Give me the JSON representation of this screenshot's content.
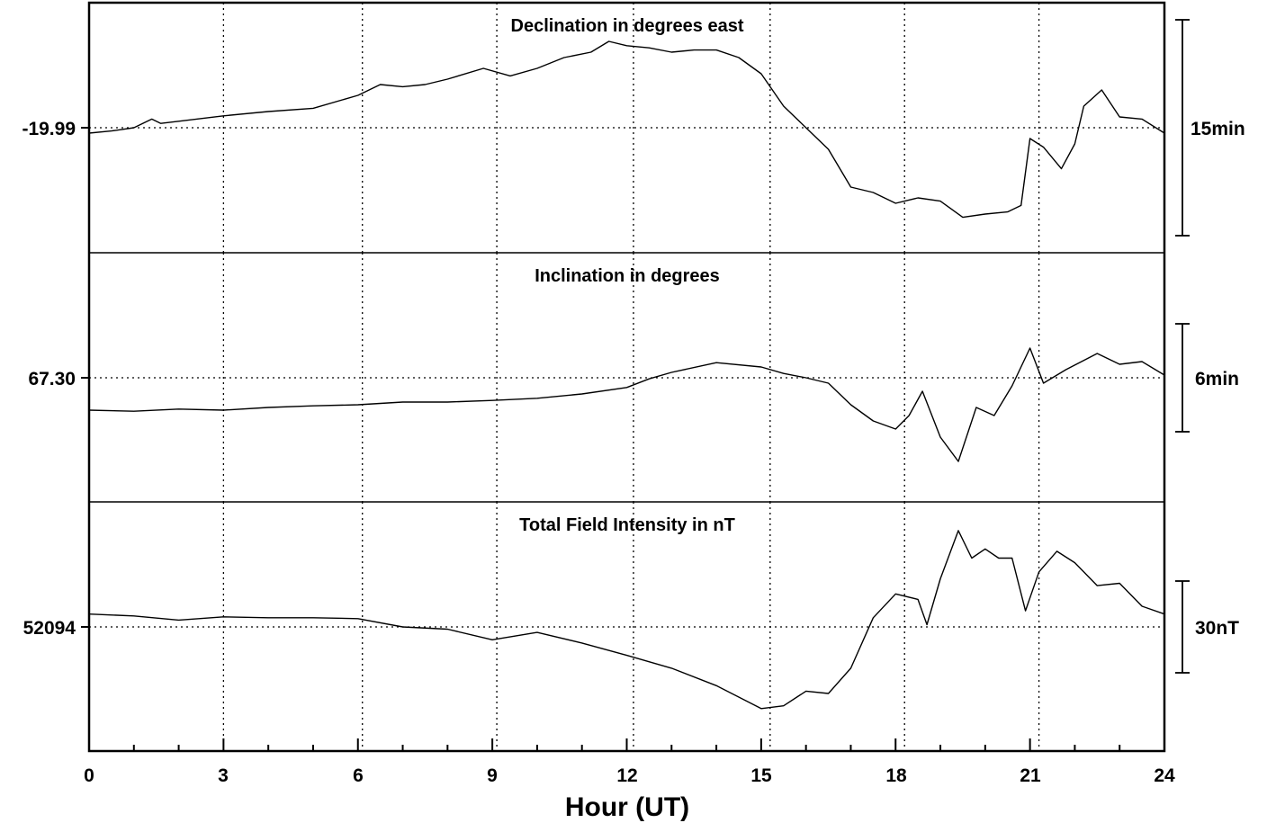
{
  "colors": {
    "trace": "#000000",
    "background": "#ffffff",
    "grid": "#000000"
  },
  "chart_data": {
    "type": "line",
    "x_axis": {
      "label": "Hour (UT)",
      "range": [
        0,
        24
      ],
      "ticks": [
        "0",
        "3",
        "6",
        "9",
        "12",
        "15",
        "18",
        "21",
        "24"
      ],
      "tick_values": [
        0,
        3,
        6,
        9,
        12,
        15,
        18,
        21,
        24
      ],
      "minor_tick_step": 1
    },
    "grid": "dotted",
    "panels": [
      {
        "key": "declination",
        "title": "Declination in degrees east",
        "baseline_label": "-19.99",
        "scale_bar_label": "15min",
        "vertical_units": "scale bar",
        "baseline_offset": 0,
        "ylim": [
          -1.15,
          1.15
        ],
        "vertical_grid_hours": [
          3,
          6.1,
          9.1,
          12.15,
          15.2,
          18.2,
          21.2
        ],
        "series": [
          {
            "values": [
              [
                0,
                -0.05
              ],
              [
                0.5,
                -0.03
              ],
              [
                1,
                0
              ],
              [
                1.4,
                0.08
              ],
              [
                1.6,
                0.04
              ],
              [
                2,
                0.06
              ],
              [
                3,
                0.11
              ],
              [
                4,
                0.15
              ],
              [
                5,
                0.18
              ],
              [
                6,
                0.3
              ],
              [
                6.5,
                0.4
              ],
              [
                7,
                0.38
              ],
              [
                7.5,
                0.4
              ],
              [
                8,
                0.45
              ],
              [
                8.8,
                0.55
              ],
              [
                9.4,
                0.48
              ],
              [
                10,
                0.55
              ],
              [
                10.6,
                0.65
              ],
              [
                11.2,
                0.7
              ],
              [
                11.6,
                0.8
              ],
              [
                12,
                0.76
              ],
              [
                12.5,
                0.74
              ],
              [
                13,
                0.7
              ],
              [
                13.5,
                0.72
              ],
              [
                14,
                0.72
              ],
              [
                14.5,
                0.65
              ],
              [
                15,
                0.5
              ],
              [
                15.5,
                0.2
              ],
              [
                16,
                0
              ],
              [
                16.5,
                -0.2
              ],
              [
                17,
                -0.55
              ],
              [
                17.5,
                -0.6
              ],
              [
                18,
                -0.7
              ],
              [
                18.5,
                -0.65
              ],
              [
                19,
                -0.68
              ],
              [
                19.5,
                -0.83
              ],
              [
                20,
                -0.8
              ],
              [
                20.5,
                -0.78
              ],
              [
                20.8,
                -0.72
              ],
              [
                21,
                -0.1
              ],
              [
                21.3,
                -0.18
              ],
              [
                21.7,
                -0.38
              ],
              [
                22,
                -0.15
              ],
              [
                22.2,
                0.2
              ],
              [
                22.6,
                0.35
              ],
              [
                23,
                0.1
              ],
              [
                23.5,
                0.08
              ],
              [
                24,
                -0.05
              ]
            ]
          }
        ]
      },
      {
        "key": "inclination",
        "title": "Inclination in degrees",
        "baseline_label": "67.30",
        "scale_bar_label": "6min",
        "vertical_units": "scale bar",
        "baseline_offset": 0,
        "ylim": [
          -1.15,
          1.15
        ],
        "vertical_grid_hours": [
          3,
          6.1,
          9.1,
          12.15,
          15.2,
          18.2,
          21.2
        ],
        "series": [
          {
            "values": [
              [
                0,
                -0.6
              ],
              [
                1,
                -0.62
              ],
              [
                2,
                -0.58
              ],
              [
                3,
                -0.6
              ],
              [
                4,
                -0.55
              ],
              [
                5,
                -0.52
              ],
              [
                6,
                -0.5
              ],
              [
                7,
                -0.45
              ],
              [
                8,
                -0.45
              ],
              [
                9,
                -0.42
              ],
              [
                10,
                -0.38
              ],
              [
                11,
                -0.3
              ],
              [
                12,
                -0.18
              ],
              [
                12.5,
                -0.02
              ],
              [
                13,
                0.1
              ],
              [
                14,
                0.28
              ],
              [
                15,
                0.2
              ],
              [
                15.5,
                0.08
              ],
              [
                16,
                0
              ],
              [
                16.5,
                -0.1
              ],
              [
                17,
                -0.5
              ],
              [
                17.5,
                -0.8
              ],
              [
                18,
                -0.95
              ],
              [
                18.3,
                -0.7
              ],
              [
                18.6,
                -0.25
              ],
              [
                19,
                -1.1
              ],
              [
                19.4,
                -1.55
              ],
              [
                19.8,
                -0.55
              ],
              [
                20.2,
                -0.7
              ],
              [
                20.6,
                -0.15
              ],
              [
                21,
                0.55
              ],
              [
                21.3,
                -0.1
              ],
              [
                21.8,
                0.15
              ],
              [
                22.5,
                0.45
              ],
              [
                23,
                0.25
              ],
              [
                23.5,
                0.3
              ],
              [
                24,
                0.05
              ]
            ]
          }
        ]
      },
      {
        "key": "total_field",
        "title": "Total Field Intensity in nT",
        "baseline_label": "52094",
        "scale_bar_label": "30nT",
        "vertical_units": "scale bar",
        "baseline_offset": 0,
        "ylim": [
          -1.35,
          2.15
        ],
        "vertical_grid_hours": [
          3,
          6.1,
          9.1,
          12.15,
          15.2,
          18.2,
          21.2
        ],
        "series": [
          {
            "values": [
              [
                0,
                0.28
              ],
              [
                1,
                0.24
              ],
              [
                2,
                0.15
              ],
              [
                3,
                0.22
              ],
              [
                4,
                0.2
              ],
              [
                5,
                0.2
              ],
              [
                6,
                0.18
              ],
              [
                7,
                0
              ],
              [
                8,
                -0.05
              ],
              [
                9,
                -0.28
              ],
              [
                10,
                -0.12
              ],
              [
                11,
                -0.35
              ],
              [
                12,
                -0.62
              ],
              [
                13,
                -0.9
              ],
              [
                14,
                -1.28
              ],
              [
                15,
                -1.78
              ],
              [
                15.5,
                -1.72
              ],
              [
                16,
                -1.4
              ],
              [
                16.5,
                -1.45
              ],
              [
                17,
                -0.9
              ],
              [
                17.5,
                0.2
              ],
              [
                18,
                0.72
              ],
              [
                18.5,
                0.6
              ],
              [
                18.7,
                0.05
              ],
              [
                19,
                1.05
              ],
              [
                19.4,
                2.1
              ],
              [
                19.7,
                1.5
              ],
              [
                20,
                1.7
              ],
              [
                20.3,
                1.5
              ],
              [
                20.6,
                1.5
              ],
              [
                20.9,
                0.35
              ],
              [
                21.2,
                1.2
              ],
              [
                21.6,
                1.65
              ],
              [
                22,
                1.4
              ],
              [
                22.5,
                0.9
              ],
              [
                23,
                0.95
              ],
              [
                23.5,
                0.45
              ],
              [
                24,
                0.28
              ]
            ]
          }
        ]
      }
    ]
  }
}
